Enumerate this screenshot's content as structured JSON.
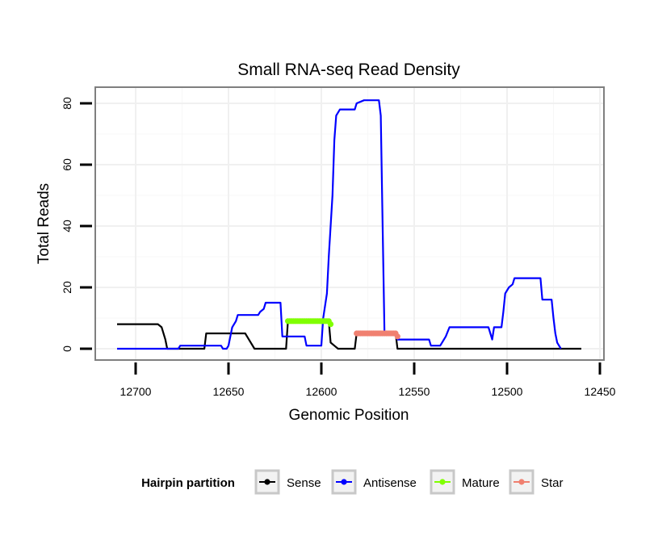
{
  "chart_data": {
    "type": "line",
    "title": "Small RNA-seq Read Density",
    "xlabel": "Genomic Position",
    "ylabel": "Total Reads",
    "xlim": [
      12720,
      12450
    ],
    "ylim": [
      -3,
      85
    ],
    "x_reversed": true,
    "grid": true,
    "x_ticks": [
      12700,
      12650,
      12600,
      12550,
      12500,
      12450
    ],
    "x_tick_labels": [
      "12700",
      "12650",
      "12600",
      "12550",
      "12500",
      "12450"
    ],
    "y_ticks": [
      0,
      20,
      40,
      60,
      80
    ],
    "y_tick_labels": [
      "0",
      "20",
      "40",
      "60",
      "80"
    ],
    "legend": {
      "title": "Hairpin partition",
      "position": "bottom",
      "entries": [
        "Sense",
        "Antisense",
        "Mature",
        "Star"
      ]
    },
    "series": [
      {
        "name": "Sense",
        "color": "#000000",
        "style": "line",
        "points": [
          [
            12710,
            8
          ],
          [
            12688,
            8
          ],
          [
            12686,
            7
          ],
          [
            12684,
            3
          ],
          [
            12683,
            0
          ],
          [
            12663,
            0
          ],
          [
            12662,
            5
          ],
          [
            12641,
            5
          ],
          [
            12640,
            4
          ],
          [
            12638,
            2
          ],
          [
            12636,
            0
          ],
          [
            12619,
            0
          ],
          [
            12618,
            9
          ],
          [
            12596,
            9
          ],
          [
            12595,
            2
          ],
          [
            12593,
            1
          ],
          [
            12591,
            0
          ],
          [
            12582,
            0
          ],
          [
            12581,
            5
          ],
          [
            12560,
            5
          ],
          [
            12559,
            0
          ],
          [
            12460,
            0
          ]
        ]
      },
      {
        "name": "Antisense",
        "color": "#0000ff",
        "style": "line",
        "points": [
          [
            12710,
            0
          ],
          [
            12677,
            0
          ],
          [
            12676,
            1
          ],
          [
            12654,
            1
          ],
          [
            12653,
            0
          ],
          [
            12651,
            0
          ],
          [
            12650,
            1
          ],
          [
            12648,
            7
          ],
          [
            12646,
            9
          ],
          [
            12645,
            11
          ],
          [
            12634,
            11
          ],
          [
            12633,
            12
          ],
          [
            12631,
            13
          ],
          [
            12630,
            15
          ],
          [
            12622,
            15
          ],
          [
            12621,
            4
          ],
          [
            12609,
            4
          ],
          [
            12608,
            1
          ],
          [
            12600,
            1
          ],
          [
            12599,
            10
          ],
          [
            12597,
            18
          ],
          [
            12596,
            30
          ],
          [
            12594,
            50
          ],
          [
            12593,
            68
          ],
          [
            12592,
            76
          ],
          [
            12590,
            78
          ],
          [
            12584,
            78
          ],
          [
            12582,
            78
          ],
          [
            12581,
            80
          ],
          [
            12577,
            81
          ],
          [
            12569,
            81
          ],
          [
            12568,
            76
          ],
          [
            12567,
            40
          ],
          [
            12566,
            5
          ],
          [
            12560,
            5
          ],
          [
            12559,
            3
          ],
          [
            12542,
            3
          ],
          [
            12541,
            1
          ],
          [
            12536,
            1
          ],
          [
            12535,
            2
          ],
          [
            12533,
            4
          ],
          [
            12531,
            7
          ],
          [
            12510,
            7
          ],
          [
            12509,
            5
          ],
          [
            12508,
            3
          ],
          [
            12507,
            7
          ],
          [
            12503,
            7
          ],
          [
            12502,
            12
          ],
          [
            12501,
            18
          ],
          [
            12499,
            20
          ],
          [
            12497,
            21
          ],
          [
            12496,
            23
          ],
          [
            12482,
            23
          ],
          [
            12481,
            16
          ],
          [
            12476,
            16
          ],
          [
            12475,
            10
          ],
          [
            12474,
            5
          ],
          [
            12473,
            2
          ],
          [
            12472,
            1
          ],
          [
            12471,
            0
          ]
        ]
      },
      {
        "name": "Mature",
        "color": "#80ff00",
        "style": "dots",
        "points": [
          [
            12618,
            9
          ],
          [
            12617,
            9
          ],
          [
            12616,
            9
          ],
          [
            12615,
            9
          ],
          [
            12614,
            9
          ],
          [
            12613,
            9
          ],
          [
            12612,
            9
          ],
          [
            12611,
            9
          ],
          [
            12610,
            9
          ],
          [
            12609,
            9
          ],
          [
            12608,
            9
          ],
          [
            12607,
            9
          ],
          [
            12606,
            9
          ],
          [
            12605,
            9
          ],
          [
            12604,
            9
          ],
          [
            12603,
            9
          ],
          [
            12602,
            9
          ],
          [
            12601,
            9
          ],
          [
            12600,
            9
          ],
          [
            12599,
            9
          ],
          [
            12598,
            9
          ],
          [
            12597,
            9
          ],
          [
            12596,
            9
          ],
          [
            12595,
            8
          ]
        ]
      },
      {
        "name": "Star",
        "color": "#f08070",
        "style": "dots",
        "points": [
          [
            12581,
            5
          ],
          [
            12580,
            5
          ],
          [
            12579,
            5
          ],
          [
            12578,
            5
          ],
          [
            12577,
            5
          ],
          [
            12576,
            5
          ],
          [
            12575,
            5
          ],
          [
            12574,
            5
          ],
          [
            12573,
            5
          ],
          [
            12572,
            5
          ],
          [
            12571,
            5
          ],
          [
            12570,
            5
          ],
          [
            12569,
            5
          ],
          [
            12568,
            5
          ],
          [
            12567,
            5
          ],
          [
            12566,
            5
          ],
          [
            12565,
            5
          ],
          [
            12564,
            5
          ],
          [
            12563,
            5
          ],
          [
            12562,
            5
          ],
          [
            12561,
            5
          ],
          [
            12560,
            5
          ],
          [
            12559,
            4
          ]
        ]
      }
    ]
  }
}
